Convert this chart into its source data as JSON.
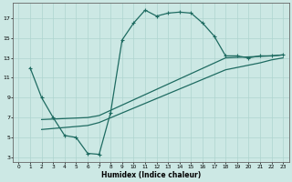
{
  "xlabel": "Humidex (Indice chaleur)",
  "bg_color": "#cce8e4",
  "line_color": "#1e6b61",
  "grid_color": "#aed4cf",
  "xlim": [
    -0.5,
    23.5
  ],
  "ylim": [
    2.5,
    18.5
  ],
  "xticks": [
    0,
    1,
    2,
    3,
    4,
    5,
    6,
    7,
    8,
    9,
    10,
    11,
    12,
    13,
    14,
    15,
    16,
    17,
    18,
    19,
    20,
    21,
    22,
    23
  ],
  "yticks": [
    3,
    5,
    7,
    9,
    11,
    13,
    15,
    17
  ],
  "line1_x": [
    1,
    2,
    3,
    4,
    5,
    6,
    7,
    8,
    9,
    10,
    11,
    12,
    13,
    14,
    15,
    16,
    17,
    18,
    19,
    20,
    21,
    22,
    23
  ],
  "line1_y": [
    12,
    9,
    7,
    5.2,
    5.0,
    3.4,
    3.3,
    7.5,
    14.8,
    16.5,
    17.8,
    17.2,
    17.5,
    17.6,
    17.5,
    16.5,
    15.2,
    13.2,
    13.2,
    13.0,
    13.2,
    13.2,
    13.3
  ],
  "line2_x": [
    2,
    6,
    7,
    18,
    21,
    22,
    23
  ],
  "line2_y": [
    6.8,
    7.0,
    7.2,
    13.0,
    13.15,
    13.2,
    13.3
  ],
  "line3_x": [
    2,
    6,
    7,
    18,
    21,
    22,
    23
  ],
  "line3_y": [
    5.8,
    6.2,
    6.5,
    11.8,
    12.5,
    12.8,
    13.0
  ]
}
